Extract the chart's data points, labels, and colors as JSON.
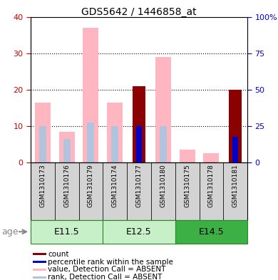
{
  "title": "GDS5642 / 1446858_at",
  "samples": [
    "GSM1310173",
    "GSM1310176",
    "GSM1310179",
    "GSM1310174",
    "GSM1310177",
    "GSM1310180",
    "GSM1310175",
    "GSM1310178",
    "GSM1310181"
  ],
  "age_groups": [
    {
      "label": "E11.5",
      "start": 0,
      "end": 2
    },
    {
      "label": "E12.5",
      "start": 3,
      "end": 5
    },
    {
      "label": "E14.5",
      "start": 6,
      "end": 8
    }
  ],
  "value_absent": [
    16.5,
    8.5,
    37.0,
    16.5,
    null,
    29.0,
    3.5,
    2.5,
    null
  ],
  "rank_absent": [
    10.0,
    6.5,
    11.0,
    10.0,
    null,
    10.0,
    null,
    null,
    6.5
  ],
  "count": [
    null,
    null,
    null,
    null,
    21.0,
    null,
    null,
    null,
    20.0
  ],
  "percentile_rank": [
    null,
    null,
    null,
    null,
    10.0,
    null,
    null,
    null,
    7.0
  ],
  "ylim_left": [
    0,
    40
  ],
  "ylim_right": [
    0,
    100
  ],
  "yticks_left": [
    0,
    10,
    20,
    30,
    40
  ],
  "yticks_right": [
    0,
    25,
    50,
    75,
    100
  ],
  "yticklabels_right": [
    "0",
    "25",
    "50",
    "75",
    "100%"
  ],
  "color_left_axis": "#CC0000",
  "color_right_axis": "#0000CC",
  "color_count": "#8B0000",
  "color_percentile": "#0000CD",
  "color_value_absent": "#FFB6C1",
  "color_rank_absent": "#B0C4DE",
  "color_sample_bg": "#D3D3D3",
  "color_age_bg_light": "#C8F0C8",
  "color_age_bg_dark": "#3CB045",
  "color_age_border": "#228B22",
  "legend_items": [
    {
      "color": "#8B0000",
      "label": "count"
    },
    {
      "color": "#0000CD",
      "label": "percentile rank within the sample"
    },
    {
      "color": "#FFB6C1",
      "label": "value, Detection Call = ABSENT"
    },
    {
      "color": "#B0C4DE",
      "label": "rank, Detection Call = ABSENT"
    }
  ]
}
